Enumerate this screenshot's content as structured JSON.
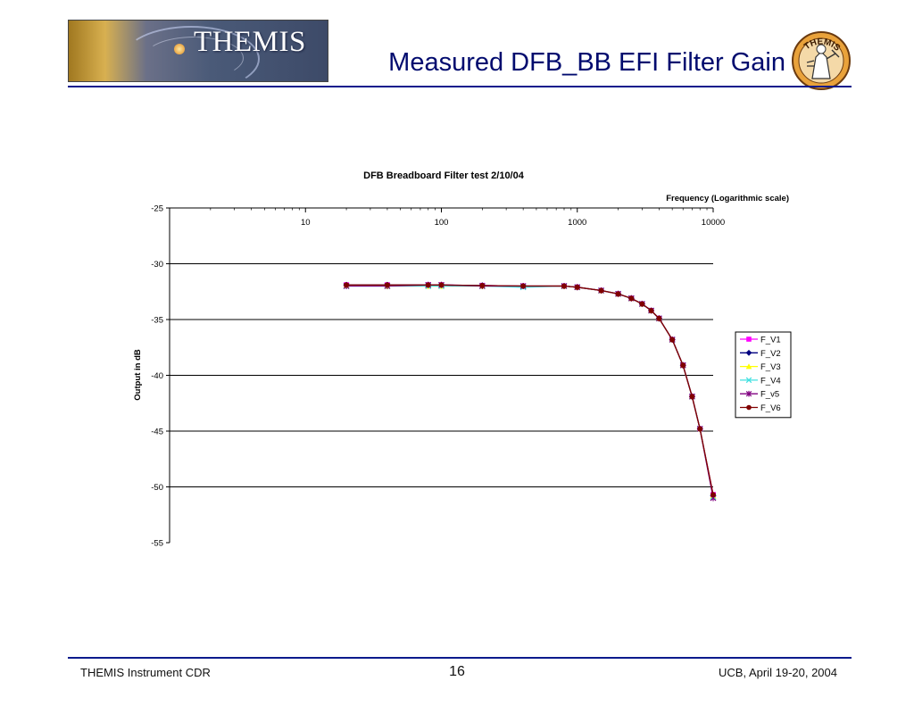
{
  "header": {
    "logo_text": "THEMIS",
    "title": "Measured DFB_BB EFI Filter Gain",
    "seal_text": "THEMIS"
  },
  "footer": {
    "left": "THEMIS Instrument CDR",
    "page_number": "16",
    "right": "UCB, April 19-20, 2004"
  },
  "colors": {
    "title": "#000a6e",
    "rule": "#0a1a8c"
  },
  "chart_data": {
    "type": "line",
    "title": "DFB Breadboard Filter test 2/10/04",
    "xlabel": "Frequency (Logarithmic scale)",
    "ylabel": "Output in dB",
    "x_scale": "log",
    "x_axis_position": "top",
    "xlim": [
      1,
      10000
    ],
    "ylim": [
      -55,
      -25
    ],
    "x_ticks": [
      {
        "value": 10,
        "label": "10"
      },
      {
        "value": 100,
        "label": "100"
      },
      {
        "value": 1000,
        "label": "1000"
      },
      {
        "value": 10000,
        "label": "10000"
      }
    ],
    "y_ticks": [
      {
        "value": -25,
        "label": "-25"
      },
      {
        "value": -30,
        "label": "-30"
      },
      {
        "value": -35,
        "label": "-35"
      },
      {
        "value": -40,
        "label": "-40"
      },
      {
        "value": -45,
        "label": "-45"
      },
      {
        "value": -50,
        "label": "-50"
      },
      {
        "value": -55,
        "label": "-55"
      }
    ],
    "grid": "horizontal",
    "legend_position": "right",
    "x": [
      20,
      40,
      80,
      100,
      200,
      400,
      800,
      1000,
      1500,
      2000,
      2500,
      3000,
      3500,
      4000,
      5000,
      6000,
      7000,
      8000,
      10000
    ],
    "series": [
      {
        "name": "F_V1",
        "color": "#ff00ff",
        "marker": "square",
        "values": [
          -31.9,
          -31.9,
          -31.9,
          -31.9,
          -31.95,
          -32.0,
          -32.0,
          -32.1,
          -32.4,
          -32.7,
          -33.1,
          -33.6,
          -34.2,
          -34.9,
          -36.8,
          -39.1,
          -41.9,
          -44.8,
          -50.7
        ]
      },
      {
        "name": "F_V2",
        "color": "#000080",
        "marker": "diamond",
        "values": [
          -31.9,
          -31.9,
          -31.9,
          -31.9,
          -31.95,
          -32.0,
          -32.0,
          -32.1,
          -32.4,
          -32.7,
          -33.1,
          -33.6,
          -34.2,
          -34.9,
          -36.8,
          -39.1,
          -41.9,
          -44.8,
          -50.8
        ]
      },
      {
        "name": "F_V3",
        "color": "#ffff00",
        "marker": "triangle",
        "values": [
          -31.95,
          -32.0,
          -32.0,
          -32.0,
          -32.0,
          -32.0,
          -32.0,
          -32.1,
          -32.4,
          -32.7,
          -33.1,
          -33.6,
          -34.2,
          -34.9,
          -36.8,
          -39.1,
          -41.9,
          -44.8,
          -50.8
        ]
      },
      {
        "name": "F_V4",
        "color": "#40e0e0",
        "marker": "x",
        "values": [
          -32.0,
          -32.0,
          -32.0,
          -32.0,
          -32.0,
          -32.1,
          -32.0,
          -32.1,
          -32.4,
          -32.7,
          -33.1,
          -33.6,
          -34.2,
          -34.9,
          -36.8,
          -39.1,
          -41.9,
          -44.8,
          -50.9
        ]
      },
      {
        "name": "F_v5",
        "color": "#800080",
        "marker": "star",
        "values": [
          -32.0,
          -32.0,
          -31.9,
          -31.9,
          -32.0,
          -32.0,
          -32.0,
          -32.1,
          -32.4,
          -32.7,
          -33.1,
          -33.6,
          -34.2,
          -34.9,
          -36.8,
          -39.1,
          -41.9,
          -44.8,
          -51.0
        ]
      },
      {
        "name": "F_V6",
        "color": "#800000",
        "marker": "circle",
        "values": [
          -31.9,
          -31.9,
          -31.9,
          -31.9,
          -31.95,
          -32.0,
          -32.0,
          -32.1,
          -32.4,
          -32.7,
          -33.1,
          -33.6,
          -34.2,
          -34.9,
          -36.8,
          -39.1,
          -41.9,
          -44.8,
          -50.7
        ]
      }
    ]
  }
}
